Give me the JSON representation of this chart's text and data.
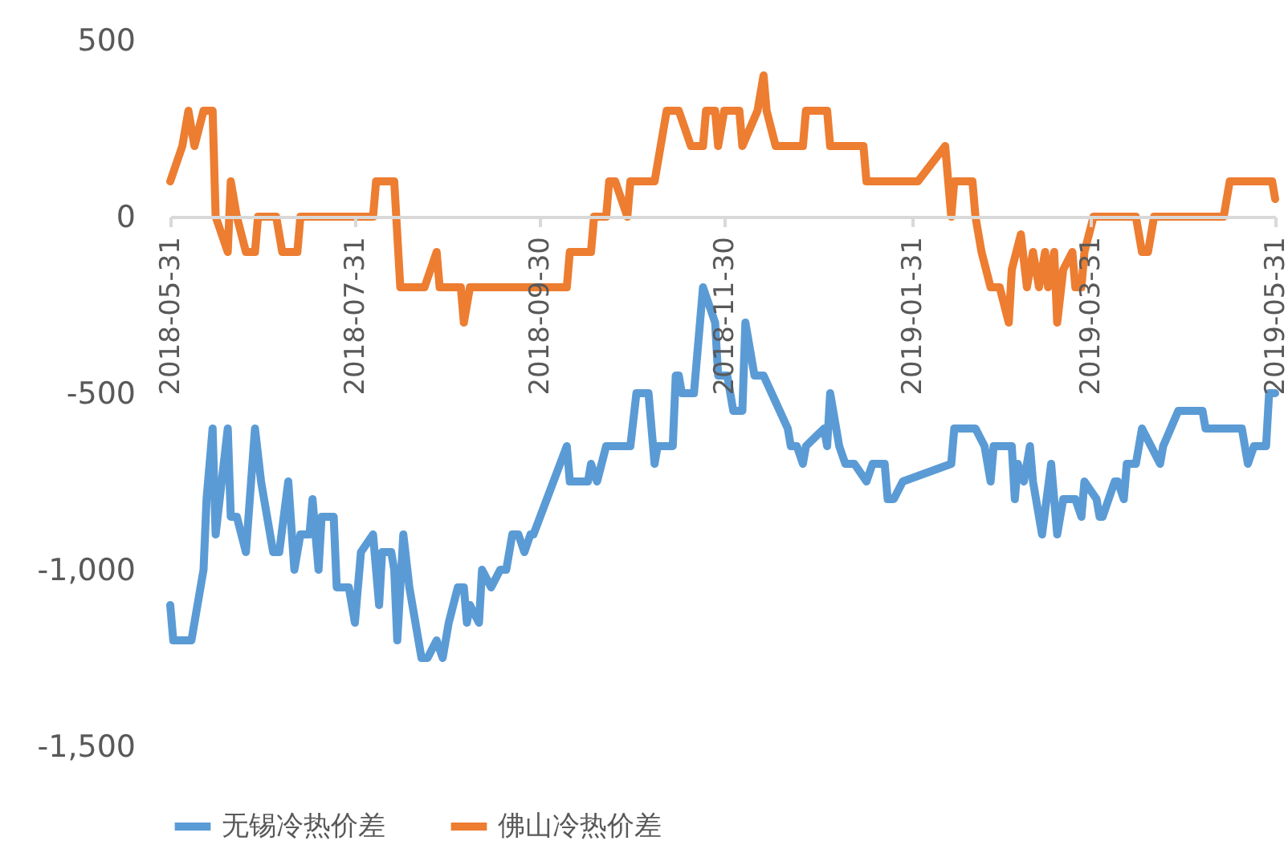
{
  "chart_data": {
    "type": "line",
    "xlim": [
      "2018-05-31",
      "2019-05-31"
    ],
    "xticks": [
      {
        "value": "2018-05-31",
        "label": "2018-05-31"
      },
      {
        "value": "2018-07-31",
        "label": "2018-07-31"
      },
      {
        "value": "2018-09-30",
        "label": "2018-09-30"
      },
      {
        "value": "2018-11-30",
        "label": "2018-11-30"
      },
      {
        "value": "2019-01-31",
        "label": "2019-01-31"
      },
      {
        "value": "2019-03-31",
        "label": "2019-03-31"
      },
      {
        "value": "2019-05-31",
        "label": "2019-05-31"
      }
    ],
    "ylim": [
      -1500,
      500
    ],
    "yticks": [
      500,
      0,
      -500,
      {
        "value": -1000,
        "label": "-1,000"
      },
      {
        "value": -1500,
        "label": "-1,500"
      }
    ],
    "grid": false,
    "legend": "bottom",
    "line_style": "solid",
    "marker": "none",
    "series": [
      {
        "name": "无锡冷热价差",
        "color": "#5b9bd5",
        "x": [
          "2018-05-31",
          "2018-06-01",
          "2018-06-07",
          "2018-06-09",
          "2018-06-11",
          "2018-06-12",
          "2018-06-14",
          "2018-06-15",
          "2018-06-19",
          "2018-06-20",
          "2018-06-22",
          "2018-06-25",
          "2018-06-28",
          "2018-06-30",
          "2018-07-04",
          "2018-07-06",
          "2018-07-09",
          "2018-07-11",
          "2018-07-13",
          "2018-07-16",
          "2018-07-17",
          "2018-07-19",
          "2018-07-20",
          "2018-07-24",
          "2018-07-25",
          "2018-07-29",
          "2018-07-31",
          "2018-08-02",
          "2018-08-06",
          "2018-08-08",
          "2018-08-09",
          "2018-08-12",
          "2018-08-13",
          "2018-08-14",
          "2018-08-16",
          "2018-08-18",
          "2018-08-22",
          "2018-08-24",
          "2018-08-27",
          "2018-08-29",
          "2018-08-31",
          "2018-09-03",
          "2018-09-05",
          "2018-09-06",
          "2018-09-07",
          "2018-09-10",
          "2018-09-11",
          "2018-09-14",
          "2018-09-17",
          "2018-09-19",
          "2018-09-21",
          "2018-09-23",
          "2018-09-25",
          "2018-09-27",
          "2018-09-28",
          "2018-10-09",
          "2018-10-10",
          "2018-10-16",
          "2018-10-17",
          "2018-10-19",
          "2018-10-22",
          "2018-10-30",
          "2018-11-01",
          "2018-11-05",
          "2018-11-07",
          "2018-11-08",
          "2018-11-13",
          "2018-11-14",
          "2018-11-15",
          "2018-11-16",
          "2018-11-20",
          "2018-11-23",
          "2018-11-27",
          "2018-11-28",
          "2018-12-01",
          "2018-12-03",
          "2018-12-06",
          "2018-12-07",
          "2018-12-10",
          "2018-12-13",
          "2018-12-21",
          "2018-12-22",
          "2018-12-24",
          "2018-12-26",
          "2018-12-27",
          "2019-01-02",
          "2019-01-03",
          "2019-01-04",
          "2019-01-07",
          "2019-01-09",
          "2019-01-12",
          "2019-01-16",
          "2019-01-18",
          "2019-01-22",
          "2019-01-23",
          "2019-01-25",
          "2019-01-28",
          "2019-02-13",
          "2019-02-14",
          "2019-02-21",
          "2019-02-24",
          "2019-02-26",
          "2019-02-27",
          "2019-03-05",
          "2019-03-06",
          "2019-03-07",
          "2019-03-09",
          "2019-03-11",
          "2019-03-12",
          "2019-03-15",
          "2019-03-18",
          "2019-03-20",
          "2019-03-22",
          "2019-03-26",
          "2019-03-28",
          "2019-03-29",
          "2019-04-02",
          "2019-04-03",
          "2019-04-04",
          "2019-04-08",
          "2019-04-09",
          "2019-04-11",
          "2019-04-12",
          "2019-04-15",
          "2019-04-17",
          "2019-04-20",
          "2019-04-23",
          "2019-04-24",
          "2019-04-29",
          "2019-05-07",
          "2019-05-08",
          "2019-05-20",
          "2019-05-22",
          "2019-05-24",
          "2019-05-28",
          "2019-05-29",
          "2019-05-31"
        ],
        "values": [
          -1100,
          -1200,
          -1200,
          -1100,
          -1000,
          -800,
          -600,
          -900,
          -600,
          -850,
          -850,
          -950,
          -600,
          -750,
          -950,
          -950,
          -750,
          -1000,
          -900,
          -900,
          -800,
          -1000,
          -850,
          -850,
          -1050,
          -1050,
          -1150,
          -950,
          -900,
          -1100,
          -950,
          -950,
          -1000,
          -1200,
          -900,
          -1050,
          -1250,
          -1250,
          -1200,
          -1250,
          -1150,
          -1050,
          -1050,
          -1150,
          -1100,
          -1150,
          -1000,
          -1050,
          -1000,
          -1000,
          -900,
          -900,
          -950,
          -900,
          -900,
          -650,
          -750,
          -750,
          -700,
          -750,
          -650,
          -650,
          -500,
          -500,
          -700,
          -650,
          -650,
          -450,
          -450,
          -500,
          -500,
          -200,
          -300,
          -450,
          -450,
          -550,
          -550,
          -300,
          -450,
          -450,
          -600,
          -650,
          -650,
          -700,
          -650,
          -600,
          -650,
          -500,
          -650,
          -700,
          -700,
          -750,
          -700,
          -700,
          -800,
          -800,
          -750,
          -700,
          -600,
          -600,
          -650,
          -750,
          -650,
          -650,
          -800,
          -700,
          -750,
          -650,
          -750,
          -900,
          -700,
          -900,
          -800,
          -800,
          -850,
          -750,
          -800,
          -850,
          -850,
          -750,
          -750,
          -800,
          -700,
          -700,
          -600,
          -650,
          -700,
          -650,
          -550,
          -550,
          -600,
          -600,
          -700,
          -650,
          -650,
          -500,
          -500
        ]
      },
      {
        "name": "佛山冷热价差",
        "color": "#ed7d31",
        "x": [
          "2018-05-31",
          "2018-06-04",
          "2018-06-06",
          "2018-06-08",
          "2018-06-11",
          "2018-06-14",
          "2018-06-15",
          "2018-06-19",
          "2018-06-20",
          "2018-06-22",
          "2018-06-25",
          "2018-06-28",
          "2018-06-29",
          "2018-07-05",
          "2018-07-07",
          "2018-07-12",
          "2018-07-13",
          "2018-08-06",
          "2018-08-07",
          "2018-08-13",
          "2018-08-15",
          "2018-08-23",
          "2018-08-27",
          "2018-08-28",
          "2018-09-04",
          "2018-09-05",
          "2018-09-07",
          "2018-10-09",
          "2018-10-10",
          "2018-10-17",
          "2018-10-18",
          "2018-10-22",
          "2018-10-23",
          "2018-10-25",
          "2018-10-29",
          "2018-10-30",
          "2018-11-07",
          "2018-11-09",
          "2018-11-11",
          "2018-11-15",
          "2018-11-19",
          "2018-11-23",
          "2018-11-24",
          "2018-11-27",
          "2018-11-28",
          "2018-11-30",
          "2018-12-05",
          "2018-12-06",
          "2018-12-11",
          "2018-12-13",
          "2018-12-14",
          "2018-12-17",
          "2018-12-26",
          "2018-12-27",
          "2019-01-03",
          "2019-01-04",
          "2019-01-15",
          "2019-01-16",
          "2019-02-02",
          "2019-02-11",
          "2019-02-13",
          "2019-02-14",
          "2019-02-20",
          "2019-02-21",
          "2019-02-23",
          "2019-02-26",
          "2019-03-01",
          "2019-03-04",
          "2019-03-05",
          "2019-03-08",
          "2019-03-10",
          "2019-03-12",
          "2019-03-14",
          "2019-03-16",
          "2019-03-17",
          "2019-03-19",
          "2019-03-20",
          "2019-03-22",
          "2019-03-25",
          "2019-03-26",
          "2019-03-28",
          "2019-03-29",
          "2019-04-01",
          "2019-04-15",
          "2019-04-17",
          "2019-04-19",
          "2019-04-21",
          "2019-05-14",
          "2019-05-16",
          "2019-05-30",
          "2019-05-31"
        ],
        "values": [
          100,
          200,
          300,
          200,
          300,
          300,
          0,
          -100,
          100,
          0,
          -100,
          -100,
          0,
          0,
          -100,
          -100,
          0,
          0,
          100,
          100,
          -200,
          -200,
          -100,
          -200,
          -200,
          -300,
          -200,
          -200,
          -100,
          -100,
          0,
          0,
          100,
          100,
          0,
          100,
          100,
          200,
          300,
          300,
          200,
          200,
          300,
          300,
          200,
          300,
          300,
          200,
          300,
          400,
          300,
          200,
          200,
          300,
          300,
          200,
          200,
          100,
          100,
          200,
          0,
          100,
          100,
          0,
          -100,
          -200,
          -200,
          -300,
          -150,
          -50,
          -200,
          -100,
          -200,
          -100,
          -200,
          -100,
          -300,
          -150,
          -100,
          -200,
          -200,
          -100,
          0,
          0,
          -100,
          -100,
          0,
          0,
          100,
          100,
          50
        ]
      }
    ]
  }
}
